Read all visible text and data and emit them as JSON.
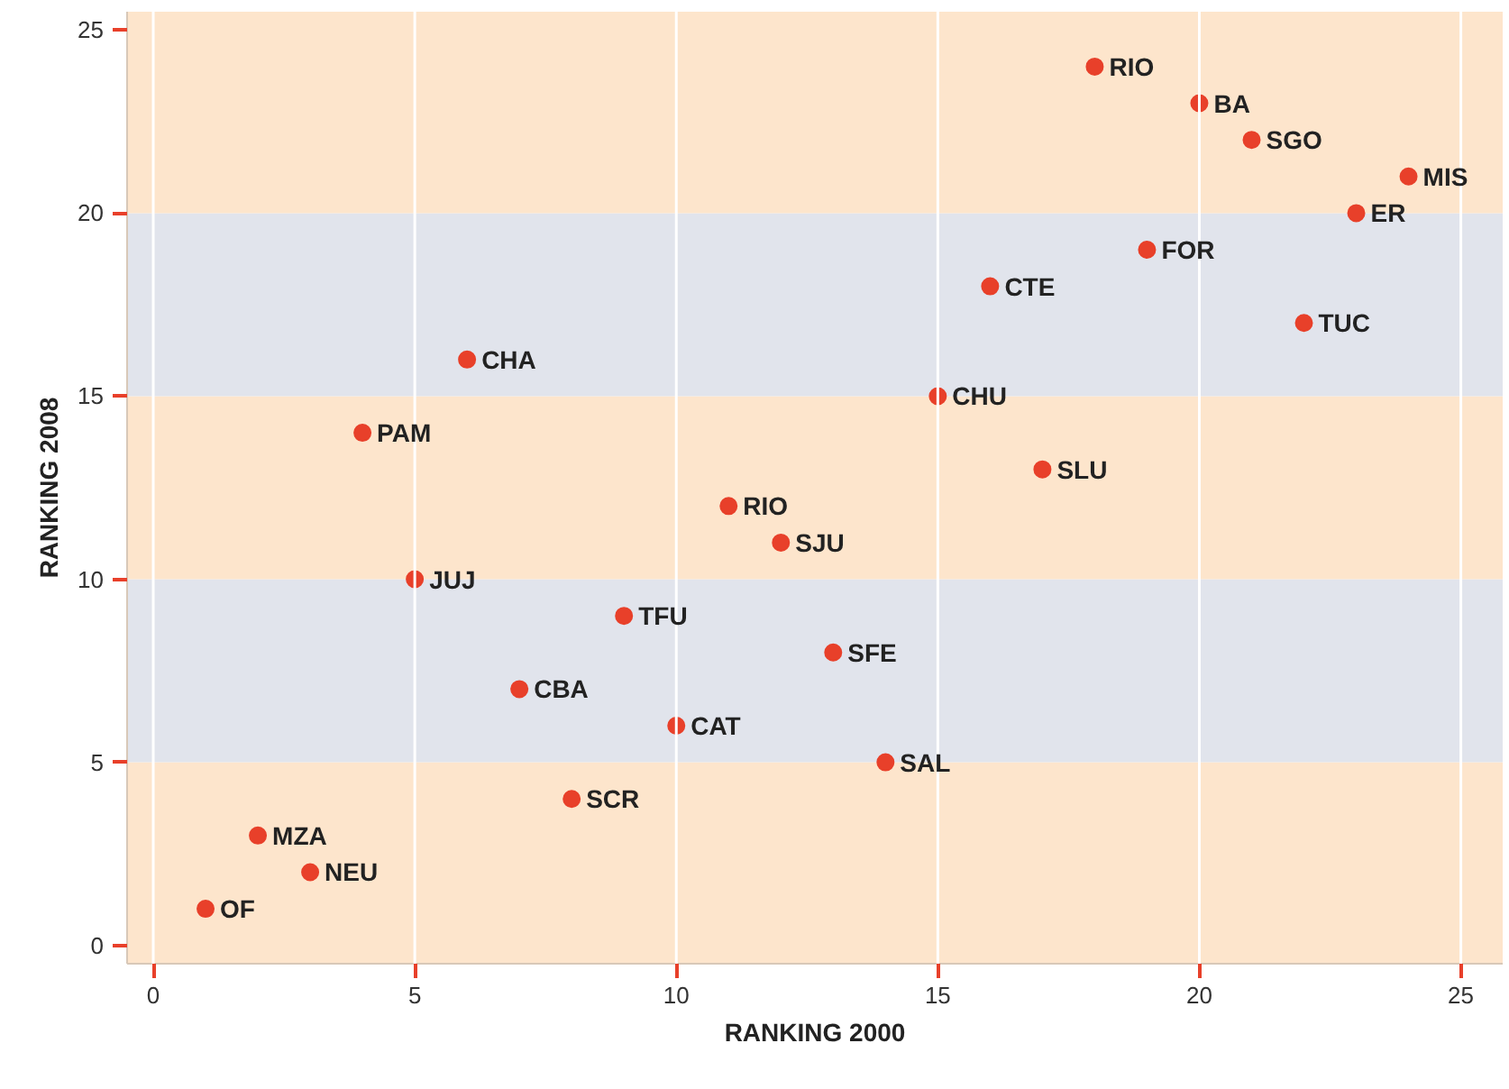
{
  "chart_data": {
    "type": "scatter",
    "xlabel": "RANKING 2000",
    "ylabel": "RANKING 2008",
    "x": [
      1,
      3,
      2,
      8,
      14,
      10,
      7,
      13,
      9,
      5,
      12,
      11,
      17,
      4,
      15,
      6,
      22,
      16,
      19,
      23,
      24,
      21,
      20,
      18
    ],
    "series": [
      {
        "color": "#e8402a",
        "values": [
          1,
          2,
          3,
          4,
          5,
          6,
          7,
          8,
          9,
          10,
          11,
          12,
          13,
          14,
          15,
          16,
          17,
          18,
          19,
          20,
          21,
          22,
          23,
          24
        ]
      }
    ],
    "marker": "circle",
    "xlim": [
      -0.5,
      25.8
    ],
    "ylim": [
      -0.5,
      25.5
    ],
    "xticks": [
      0,
      5,
      10,
      15,
      20,
      25
    ],
    "yticks": [
      0,
      5,
      10,
      15,
      20,
      25
    ],
    "grid": "x",
    "bands": [
      {
        "axis": "y",
        "from": -0.5,
        "to": 5,
        "color": "#fde5cc"
      },
      {
        "axis": "y",
        "from": 5,
        "to": 10,
        "color": "#e1e4ec"
      },
      {
        "axis": "y",
        "from": 10,
        "to": 15,
        "color": "#fde5cc"
      },
      {
        "axis": "y",
        "from": 15,
        "to": 20,
        "color": "#e1e4ec"
      },
      {
        "axis": "y",
        "from": 20,
        "to": 25.5,
        "color": "#fde5cc"
      }
    ],
    "annotations": [
      {
        "text": "OF",
        "x": 1,
        "y": 1
      },
      {
        "text": "NEU",
        "x": 3,
        "y": 2
      },
      {
        "text": "MZA",
        "x": 2,
        "y": 3
      },
      {
        "text": "SCR",
        "x": 8,
        "y": 4
      },
      {
        "text": "SAL",
        "x": 14,
        "y": 5
      },
      {
        "text": "CAT",
        "x": 10,
        "y": 6
      },
      {
        "text": "CBA",
        "x": 7,
        "y": 7
      },
      {
        "text": "SFE",
        "x": 13,
        "y": 8
      },
      {
        "text": "TFU",
        "x": 9,
        "y": 9
      },
      {
        "text": "JUJ",
        "x": 5,
        "y": 10
      },
      {
        "text": "SJU",
        "x": 12,
        "y": 11
      },
      {
        "text": "RIO",
        "x": 11,
        "y": 12
      },
      {
        "text": "SLU",
        "x": 17,
        "y": 13
      },
      {
        "text": "PAM",
        "x": 4,
        "y": 14
      },
      {
        "text": "CHU",
        "x": 15,
        "y": 15
      },
      {
        "text": "CHA",
        "x": 6,
        "y": 16
      },
      {
        "text": "TUC",
        "x": 22,
        "y": 17
      },
      {
        "text": "CTE",
        "x": 16,
        "y": 18
      },
      {
        "text": "FOR",
        "x": 19,
        "y": 19
      },
      {
        "text": "ER",
        "x": 23,
        "y": 20
      },
      {
        "text": "MIS",
        "x": 24,
        "y": 21
      },
      {
        "text": "SGO",
        "x": 21,
        "y": 22
      },
      {
        "text": "BA",
        "x": 20,
        "y": 23
      },
      {
        "text": "RIO",
        "x": 18,
        "y": 24
      }
    ]
  }
}
